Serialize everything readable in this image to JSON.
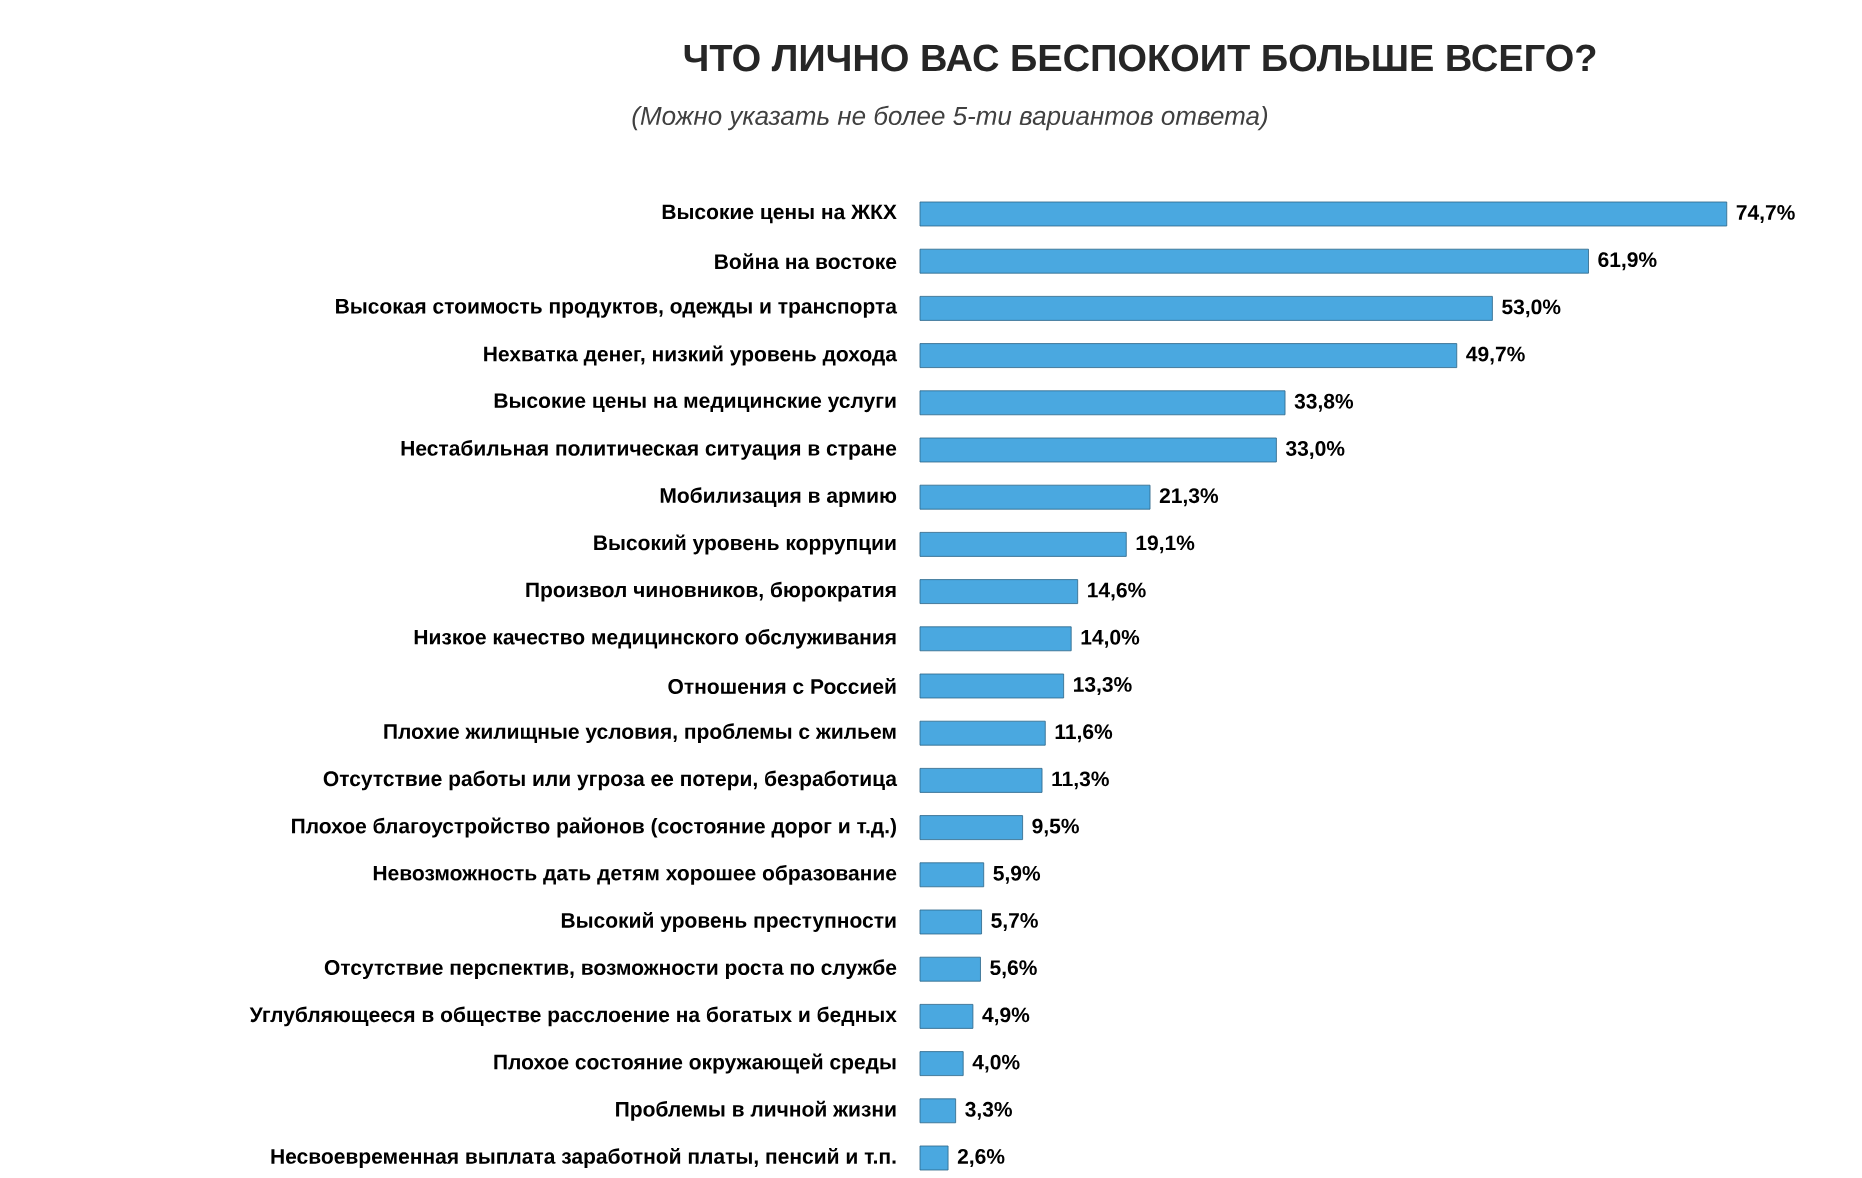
{
  "chart_data": {
    "type": "bar",
    "orientation": "horizontal",
    "title": "ЧТО ЛИЧНО ВАС БЕСПОКОИТ БОЛЬШЕ ВСЕГО?",
    "subtitle": "(Можно указать не более 5-ти вариантов ответа)",
    "categories": [
      "Высокие цены на ЖКХ",
      "Война на востоке",
      "Высокая стоимость продуктов, одежды и транспорта",
      "Нехватка денег, низкий уровень дохода",
      "Высокие цены на медицинские услуги",
      "Нестабильная политическая ситуация в стране",
      "Мобилизация в армию",
      "Высокий уровень коррупции",
      "Произвол чиновников, бюрократия",
      "Низкое качество медицинского обслуживания",
      "Отношения с Россией",
      "Плохие жилищные условия, проблемы с жильем",
      "Отсутствие работы или угроза ее потери, безработица",
      "Плохое благоустройство районов (состояние дорог и т.д.)",
      "Невозможность дать детям хорошее образование",
      "Высокий уровень преступности",
      "Отсутствие перспектив, возможности роста по службе",
      "Углубляющееся в обществе расслоение на богатых и бедных",
      "Плохое состояние окружающей среды",
      "Проблемы в личной жизни",
      "Несвоевременная выплата заработной платы, пенсий и т.п."
    ],
    "values": [
      74.7,
      61.9,
      53.0,
      49.7,
      33.8,
      33.0,
      21.3,
      19.1,
      14.6,
      14.0,
      13.3,
      11.6,
      11.3,
      9.5,
      5.9,
      5.7,
      5.6,
      4.9,
      4.0,
      3.3,
      2.6
    ],
    "value_labels": [
      "74,7%",
      "61,9%",
      "53,0%",
      "49,7%",
      "33,8%",
      "33,0%",
      "21,3%",
      "19,1%",
      "14,6%",
      "14,0%",
      "13,3%",
      "11,6%",
      "11,3%",
      "9,5%",
      "5,9%",
      "5,7%",
      "5,6%",
      "4,9%",
      "4,0%",
      "3,3%",
      "2,6%"
    ],
    "color": "#4aa8e0",
    "grid": false
  }
}
